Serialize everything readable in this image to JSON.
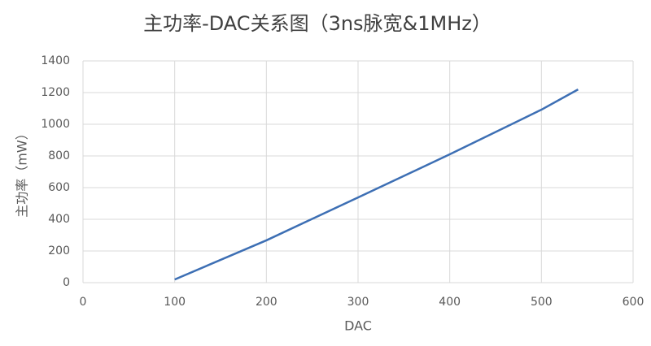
{
  "chart_data": {
    "type": "line",
    "title": "主功率-DAC关系图（3ns脉宽&1MHz）",
    "x_label": "DAC",
    "y_label": "主功率（mW）",
    "x": [
      100,
      200,
      300,
      400,
      500,
      540
    ],
    "values": [
      20,
      267,
      538,
      810,
      1092,
      1220
    ],
    "color": "#3d6fb4",
    "xlim": [
      0,
      600
    ],
    "xticks": [
      0,
      100,
      200,
      300,
      400,
      500,
      600
    ],
    "ylim": [
      0,
      1400
    ],
    "yticks": [
      0,
      200,
      400,
      600,
      800,
      1000,
      1200,
      1400
    ],
    "grid": true
  }
}
